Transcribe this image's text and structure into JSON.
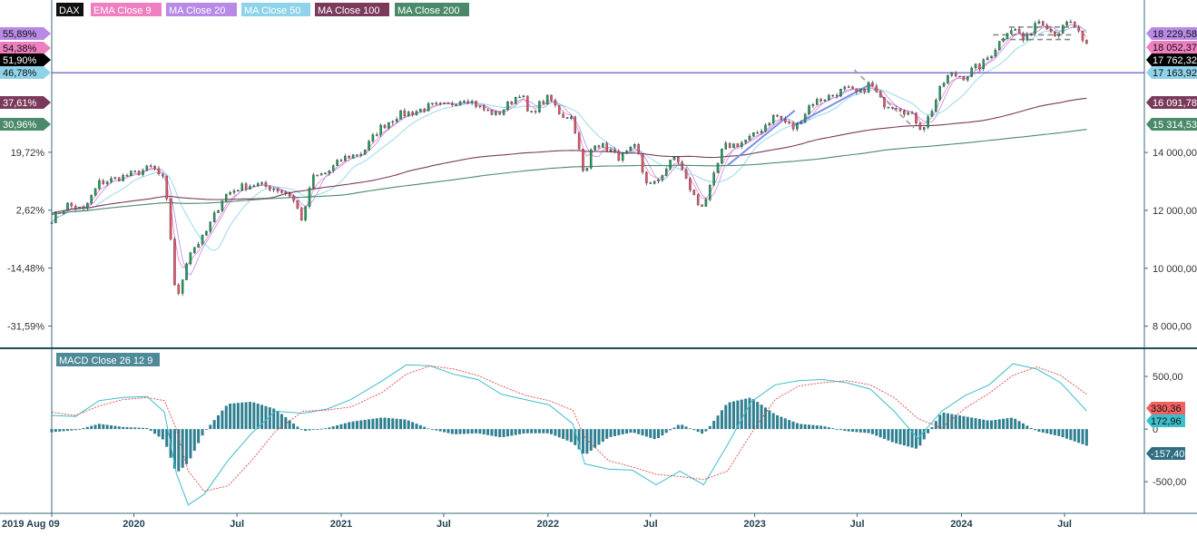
{
  "chart_data": [
    {
      "type": "candlestick",
      "title": "DAX",
      "legend_placement": "top-left",
      "legend": [
        {
          "label": "DAX",
          "color": "#111111",
          "text_color": "#ffffff"
        },
        {
          "label": "EMA Close 9",
          "color": "#ee7fc0",
          "text_color": "#ffffff"
        },
        {
          "label": "MA Close 20",
          "color": "#b78ae6",
          "text_color": "#ffffff"
        },
        {
          "label": "MA Close 50",
          "color": "#8fd3ea",
          "text_color": "#ffffff"
        },
        {
          "label": "MA Close 100",
          "color": "#7b3a5a",
          "text_color": "#ffffff"
        },
        {
          "label": "MA Close 200",
          "color": "#4a8a6a",
          "text_color": "#ffffff"
        }
      ],
      "x_ticks": [
        "2019 Aug 09",
        "2020",
        "Jul",
        "2021",
        "Jul",
        "2022",
        "Jul",
        "2023",
        "Jul",
        "2024",
        "Jul"
      ],
      "x_tick_dates": [
        "2019-08-09",
        "2020-01-01",
        "2020-07-01",
        "2021-01-01",
        "2021-07-01",
        "2022-01-01",
        "2022-07-01",
        "2023-01-01",
        "2023-07-01",
        "2024-01-01",
        "2024-07-01"
      ],
      "x_range": [
        "2019-08-09",
        "2024-08-10"
      ],
      "y_right_ticks": [
        8000,
        10000,
        12000,
        14000
      ],
      "y_right_tick_labels": [
        "8 000,00",
        "10 000,00",
        "12 000,00",
        "14 000,00"
      ],
      "y_left_ticks": [
        -31.59,
        -14.48,
        2.62,
        19.72
      ],
      "y_left_tick_labels": [
        "-31,59%",
        "-14,48%",
        "2,62%",
        "19,72%"
      ],
      "y_range": [
        7300,
        18700
      ],
      "grid": false,
      "left_badges": [
        {
          "label": "55,89%",
          "value": 18229.58,
          "color": "#b78ae6",
          "text_color": "#111111"
        },
        {
          "label": "54,38%",
          "value": 18052.37,
          "color": "#ee7fc0",
          "text_color": "#111111"
        },
        {
          "label": "51,90%",
          "value": 17762.32,
          "color": "#000000",
          "text_color": "#ffffff"
        },
        {
          "label": "46,78%",
          "value": 17163.92,
          "color": "#8fd3ea",
          "text_color": "#111111"
        },
        {
          "label": "37,61%",
          "value": 16091.78,
          "color": "#7b3a5a",
          "text_color": "#ffffff"
        },
        {
          "label": "30,96%",
          "value": 15314.53,
          "color": "#4a8a6a",
          "text_color": "#ffffff"
        }
      ],
      "right_badges": [
        {
          "label": "18 229,58",
          "value": 18229.58,
          "color": "#b78ae6",
          "text_color": "#111111"
        },
        {
          "label": "18 052,37",
          "value": 18052.37,
          "color": "#ee7fc0",
          "text_color": "#111111"
        },
        {
          "label": "17 762,32",
          "value": 17762.32,
          "color": "#000000",
          "text_color": "#ffffff"
        },
        {
          "label": "17 163,92",
          "value": 17163.92,
          "color": "#8fd3ea",
          "text_color": "#111111"
        },
        {
          "label": "16 091,78",
          "value": 16091.78,
          "color": "#7b3a5a",
          "text_color": "#ffffff"
        },
        {
          "label": "15 314,53",
          "value": 15314.53,
          "color": "#4a8a6a",
          "text_color": "#ffffff"
        }
      ],
      "horizontal_line": {
        "value": 16750,
        "color": "#6a5acd"
      },
      "annotations": [
        {
          "type": "trendline",
          "from": [
            "2022-11-14",
            13550
          ],
          "to": [
            "2023-03-13",
            15450
          ],
          "color": "#7b8fe6",
          "style": "solid"
        },
        {
          "type": "trendline",
          "from": [
            "2023-03-13",
            14950
          ],
          "to": [
            "2023-07-24",
            16350
          ],
          "color": "#7b8fe6",
          "style": "solid"
        },
        {
          "type": "trendline",
          "from": [
            "2023-06-26",
            16850
          ],
          "to": [
            "2023-10-09",
            14850
          ],
          "color": "#999999",
          "style": "dashed"
        },
        {
          "type": "hline",
          "from": [
            "2024-02-26",
            18060
          ],
          "to": [
            "2024-07-15",
            18060
          ],
          "color": "#888888",
          "style": "dashed"
        },
        {
          "type": "hline",
          "from": [
            "2024-03-11",
            17900
          ],
          "to": [
            "2024-07-15",
            17900
          ],
          "color": "#888888",
          "style": "dashed"
        },
        {
          "type": "hline",
          "from": [
            "2024-03-25",
            18330
          ],
          "to": [
            "2024-07-15",
            18330
          ],
          "color": "#888888",
          "style": "dashed"
        }
      ],
      "series": [
        {
          "date": "2019-08-09",
          "close": 11700
        },
        {
          "date": "2019-09-06",
          "close": 12190
        },
        {
          "date": "2019-10-04",
          "close": 12000
        },
        {
          "date": "2019-11-01",
          "close": 12950
        },
        {
          "date": "2019-12-02",
          "close": 13100
        },
        {
          "date": "2020-01-06",
          "close": 13300
        },
        {
          "date": "2020-02-03",
          "close": 13500
        },
        {
          "date": "2020-02-24",
          "close": 13000
        },
        {
          "date": "2020-03-09",
          "close": 10500
        },
        {
          "date": "2020-03-16",
          "close": 8700
        },
        {
          "date": "2020-04-06",
          "close": 10500
        },
        {
          "date": "2020-05-04",
          "close": 11100
        },
        {
          "date": "2020-06-08",
          "close": 12500
        },
        {
          "date": "2020-07-06",
          "close": 12800
        },
        {
          "date": "2020-08-03",
          "close": 12900
        },
        {
          "date": "2020-09-07",
          "close": 12750
        },
        {
          "date": "2020-10-05",
          "close": 12500
        },
        {
          "date": "2020-10-26",
          "close": 11600
        },
        {
          "date": "2020-11-09",
          "close": 13100
        },
        {
          "date": "2020-12-07",
          "close": 13300
        },
        {
          "date": "2021-01-04",
          "close": 13800
        },
        {
          "date": "2021-02-08",
          "close": 14000
        },
        {
          "date": "2021-03-08",
          "close": 14800
        },
        {
          "date": "2021-04-12",
          "close": 15300
        },
        {
          "date": "2021-05-10",
          "close": 15400
        },
        {
          "date": "2021-06-07",
          "close": 15600
        },
        {
          "date": "2021-07-05",
          "close": 15600
        },
        {
          "date": "2021-08-09",
          "close": 15900
        },
        {
          "date": "2021-09-06",
          "close": 15500
        },
        {
          "date": "2021-10-04",
          "close": 15300
        },
        {
          "date": "2021-11-15",
          "close": 16100
        },
        {
          "date": "2021-11-29",
          "close": 15200
        },
        {
          "date": "2021-12-13",
          "close": 15600
        },
        {
          "date": "2022-01-03",
          "close": 15900
        },
        {
          "date": "2022-01-24",
          "close": 15300
        },
        {
          "date": "2022-02-14",
          "close": 15200
        },
        {
          "date": "2022-03-07",
          "close": 13000
        },
        {
          "date": "2022-03-21",
          "close": 14400
        },
        {
          "date": "2022-04-18",
          "close": 14100
        },
        {
          "date": "2022-05-09",
          "close": 13800
        },
        {
          "date": "2022-06-06",
          "close": 14200
        },
        {
          "date": "2022-06-20",
          "close": 13100
        },
        {
          "date": "2022-07-04",
          "close": 12800
        },
        {
          "date": "2022-08-15",
          "close": 13900
        },
        {
          "date": "2022-09-05",
          "close": 12900
        },
        {
          "date": "2022-09-26",
          "close": 12100
        },
        {
          "date": "2022-10-10",
          "close": 12500
        },
        {
          "date": "2022-11-07",
          "close": 14200
        },
        {
          "date": "2022-12-05",
          "close": 14300
        },
        {
          "date": "2023-01-02",
          "close": 14600
        },
        {
          "date": "2023-02-06",
          "close": 15300
        },
        {
          "date": "2023-03-13",
          "close": 14800
        },
        {
          "date": "2023-04-10",
          "close": 15700
        },
        {
          "date": "2023-05-08",
          "close": 15900
        },
        {
          "date": "2023-06-12",
          "close": 16200
        },
        {
          "date": "2023-07-03",
          "close": 16000
        },
        {
          "date": "2023-07-24",
          "close": 16400
        },
        {
          "date": "2023-08-14",
          "close": 15700
        },
        {
          "date": "2023-09-11",
          "close": 15600
        },
        {
          "date": "2023-10-09",
          "close": 15200
        },
        {
          "date": "2023-10-23",
          "close": 14800
        },
        {
          "date": "2023-11-06",
          "close": 15300
        },
        {
          "date": "2023-11-27",
          "close": 16300
        },
        {
          "date": "2023-12-11",
          "close": 16700
        },
        {
          "date": "2024-01-08",
          "close": 16600
        },
        {
          "date": "2024-01-22",
          "close": 16900
        },
        {
          "date": "2024-02-05",
          "close": 17000
        },
        {
          "date": "2024-02-26",
          "close": 17500
        },
        {
          "date": "2024-03-11",
          "close": 17900
        },
        {
          "date": "2024-03-25",
          "close": 18300
        },
        {
          "date": "2024-04-08",
          "close": 18200
        },
        {
          "date": "2024-04-22",
          "close": 17800
        },
        {
          "date": "2024-05-13",
          "close": 18600
        },
        {
          "date": "2024-05-27",
          "close": 18500
        },
        {
          "date": "2024-06-10",
          "close": 18100
        },
        {
          "date": "2024-06-24",
          "close": 18200
        },
        {
          "date": "2024-07-08",
          "close": 18500
        },
        {
          "date": "2024-07-22",
          "close": 18300
        },
        {
          "date": "2024-08-05",
          "close": 17600
        },
        {
          "date": "2024-08-09",
          "close": 17762
        }
      ]
    },
    {
      "type": "macd",
      "title": "MACD Close 26 12 9",
      "legend_color": "#4f8a99",
      "y_ticks": [
        -500,
        0,
        500
      ],
      "y_tick_labels": [
        "-500,00",
        "0",
        "500,00"
      ],
      "y_range": [
        -800,
        750
      ],
      "badges": [
        {
          "label": "330,36",
          "value": 330.36,
          "color": "#f06262",
          "text_color": "#111111"
        },
        {
          "label": "172,96",
          "value": 172.96,
          "color": "#3cbfcc",
          "text_color": "#111111"
        },
        {
          "label": "-157,40",
          "value": -157.4,
          "color": "#2e6e82",
          "text_color": "#ffffff"
        }
      ],
      "macd_line": [
        {
          "date": "2019-08-09",
          "value": 130
        },
        {
          "date": "2019-09-20",
          "value": 120
        },
        {
          "date": "2019-11-01",
          "value": 270
        },
        {
          "date": "2019-12-13",
          "value": 300
        },
        {
          "date": "2020-01-24",
          "value": 310
        },
        {
          "date": "2020-02-24",
          "value": 160
        },
        {
          "date": "2020-03-16",
          "value": -420
        },
        {
          "date": "2020-04-06",
          "value": -720
        },
        {
          "date": "2020-05-04",
          "value": -620
        },
        {
          "date": "2020-06-15",
          "value": -300
        },
        {
          "date": "2020-07-27",
          "value": -40
        },
        {
          "date": "2020-09-07",
          "value": 170
        },
        {
          "date": "2020-10-26",
          "value": 150
        },
        {
          "date": "2020-12-07",
          "value": 190
        },
        {
          "date": "2021-01-18",
          "value": 280
        },
        {
          "date": "2021-03-15",
          "value": 460
        },
        {
          "date": "2021-04-26",
          "value": 610
        },
        {
          "date": "2021-06-07",
          "value": 600
        },
        {
          "date": "2021-07-19",
          "value": 520
        },
        {
          "date": "2021-08-30",
          "value": 470
        },
        {
          "date": "2021-10-11",
          "value": 330
        },
        {
          "date": "2021-11-22",
          "value": 280
        },
        {
          "date": "2022-01-03",
          "value": 230
        },
        {
          "date": "2022-02-14",
          "value": 50
        },
        {
          "date": "2022-03-07",
          "value": -330
        },
        {
          "date": "2022-04-18",
          "value": -380
        },
        {
          "date": "2022-05-30",
          "value": -390
        },
        {
          "date": "2022-07-11",
          "value": -530
        },
        {
          "date": "2022-08-22",
          "value": -400
        },
        {
          "date": "2022-10-03",
          "value": -530
        },
        {
          "date": "2022-11-14",
          "value": -150
        },
        {
          "date": "2022-12-26",
          "value": 260
        },
        {
          "date": "2023-02-06",
          "value": 420
        },
        {
          "date": "2023-03-20",
          "value": 460
        },
        {
          "date": "2023-05-01",
          "value": 470
        },
        {
          "date": "2023-06-12",
          "value": 440
        },
        {
          "date": "2023-07-24",
          "value": 380
        },
        {
          "date": "2023-09-04",
          "value": 170
        },
        {
          "date": "2023-10-16",
          "value": -90
        },
        {
          "date": "2023-11-27",
          "value": 170
        },
        {
          "date": "2024-01-08",
          "value": 320
        },
        {
          "date": "2024-02-19",
          "value": 420
        },
        {
          "date": "2024-04-01",
          "value": 620
        },
        {
          "date": "2024-05-13",
          "value": 570
        },
        {
          "date": "2024-06-24",
          "value": 440
        },
        {
          "date": "2024-08-09",
          "value": 172.96
        }
      ],
      "signal_line": [
        {
          "date": "2019-08-09",
          "value": 160
        },
        {
          "date": "2019-09-20",
          "value": 130
        },
        {
          "date": "2019-11-01",
          "value": 220
        },
        {
          "date": "2019-12-13",
          "value": 280
        },
        {
          "date": "2020-01-24",
          "value": 300
        },
        {
          "date": "2020-02-24",
          "value": 270
        },
        {
          "date": "2020-03-16",
          "value": 0
        },
        {
          "date": "2020-04-06",
          "value": -400
        },
        {
          "date": "2020-05-04",
          "value": -590
        },
        {
          "date": "2020-06-15",
          "value": -540
        },
        {
          "date": "2020-07-27",
          "value": -300
        },
        {
          "date": "2020-09-07",
          "value": -20
        },
        {
          "date": "2020-10-26",
          "value": 170
        },
        {
          "date": "2020-12-07",
          "value": 180
        },
        {
          "date": "2021-01-18",
          "value": 210
        },
        {
          "date": "2021-03-15",
          "value": 350
        },
        {
          "date": "2021-04-26",
          "value": 520
        },
        {
          "date": "2021-06-07",
          "value": 600
        },
        {
          "date": "2021-07-19",
          "value": 570
        },
        {
          "date": "2021-08-30",
          "value": 510
        },
        {
          "date": "2021-10-11",
          "value": 410
        },
        {
          "date": "2021-11-22",
          "value": 320
        },
        {
          "date": "2022-01-03",
          "value": 270
        },
        {
          "date": "2022-02-14",
          "value": 180
        },
        {
          "date": "2022-03-07",
          "value": -80
        },
        {
          "date": "2022-04-18",
          "value": -300
        },
        {
          "date": "2022-05-30",
          "value": -360
        },
        {
          "date": "2022-07-11",
          "value": -430
        },
        {
          "date": "2022-08-22",
          "value": -450
        },
        {
          "date": "2022-10-03",
          "value": -480
        },
        {
          "date": "2022-11-14",
          "value": -400
        },
        {
          "date": "2022-12-26",
          "value": -40
        },
        {
          "date": "2023-02-06",
          "value": 280
        },
        {
          "date": "2023-03-20",
          "value": 410
        },
        {
          "date": "2023-05-01",
          "value": 440
        },
        {
          "date": "2023-06-12",
          "value": 460
        },
        {
          "date": "2023-07-24",
          "value": 420
        },
        {
          "date": "2023-09-04",
          "value": 300
        },
        {
          "date": "2023-10-16",
          "value": 100
        },
        {
          "date": "2023-11-27",
          "value": 10
        },
        {
          "date": "2024-01-08",
          "value": 200
        },
        {
          "date": "2024-02-19",
          "value": 340
        },
        {
          "date": "2024-04-01",
          "value": 510
        },
        {
          "date": "2024-05-13",
          "value": 590
        },
        {
          "date": "2024-06-24",
          "value": 510
        },
        {
          "date": "2024-08-09",
          "value": 330.36
        }
      ]
    }
  ]
}
